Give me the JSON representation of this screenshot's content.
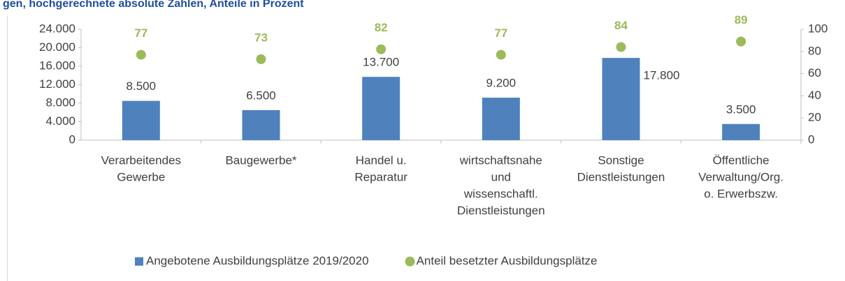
{
  "chart_data": {
    "type": "bar",
    "title": "gen, hochgerechnete absolute Zahlen, Anteile in Prozent",
    "categories": [
      [
        "Verarbeitendes",
        "Gewerbe"
      ],
      [
        "Baugewerbe*"
      ],
      [
        "Handel u.",
        "Reparatur"
      ],
      [
        "wirtschaftsnahe",
        "und",
        "wissenschaftl.",
        "Dienstleistungen"
      ],
      [
        "Sonstige",
        "Dienstleistungen"
      ],
      [
        "Öffentliche",
        "Verwaltung/Org.",
        "o. Erwerbszw."
      ]
    ],
    "series": [
      {
        "name": "Angebotene Ausbildungsplätze 2019/2020",
        "type": "bar",
        "color": "#4f81bd",
        "values": [
          8500,
          6500,
          13700,
          9200,
          17800,
          3500
        ],
        "value_labels": [
          "8.500",
          "6.500",
          "13.700",
          "9.200",
          "17.800",
          "3.500"
        ]
      },
      {
        "name": "Anteil besetzter Ausbildungsplätze",
        "type": "scatter",
        "axis": "y2",
        "color": "#9bbb59",
        "values": [
          77,
          73,
          82,
          77,
          84,
          89
        ]
      }
    ],
    "ylim": [
      0,
      24000
    ],
    "yticks": [
      0,
      {
        "value": 4000,
        "label": "4.000"
      },
      {
        "value": 8000,
        "label": "8.000"
      },
      {
        "value": 12000,
        "label": "12.000"
      },
      {
        "value": 16000,
        "label": "16.000"
      },
      {
        "value": 20000,
        "label": "20.000"
      },
      {
        "value": 24000,
        "label": "24.000"
      }
    ],
    "y2lim": [
      0,
      100
    ],
    "y2ticks": [
      0,
      20,
      40,
      60,
      80,
      100
    ],
    "legend": "bottom"
  }
}
